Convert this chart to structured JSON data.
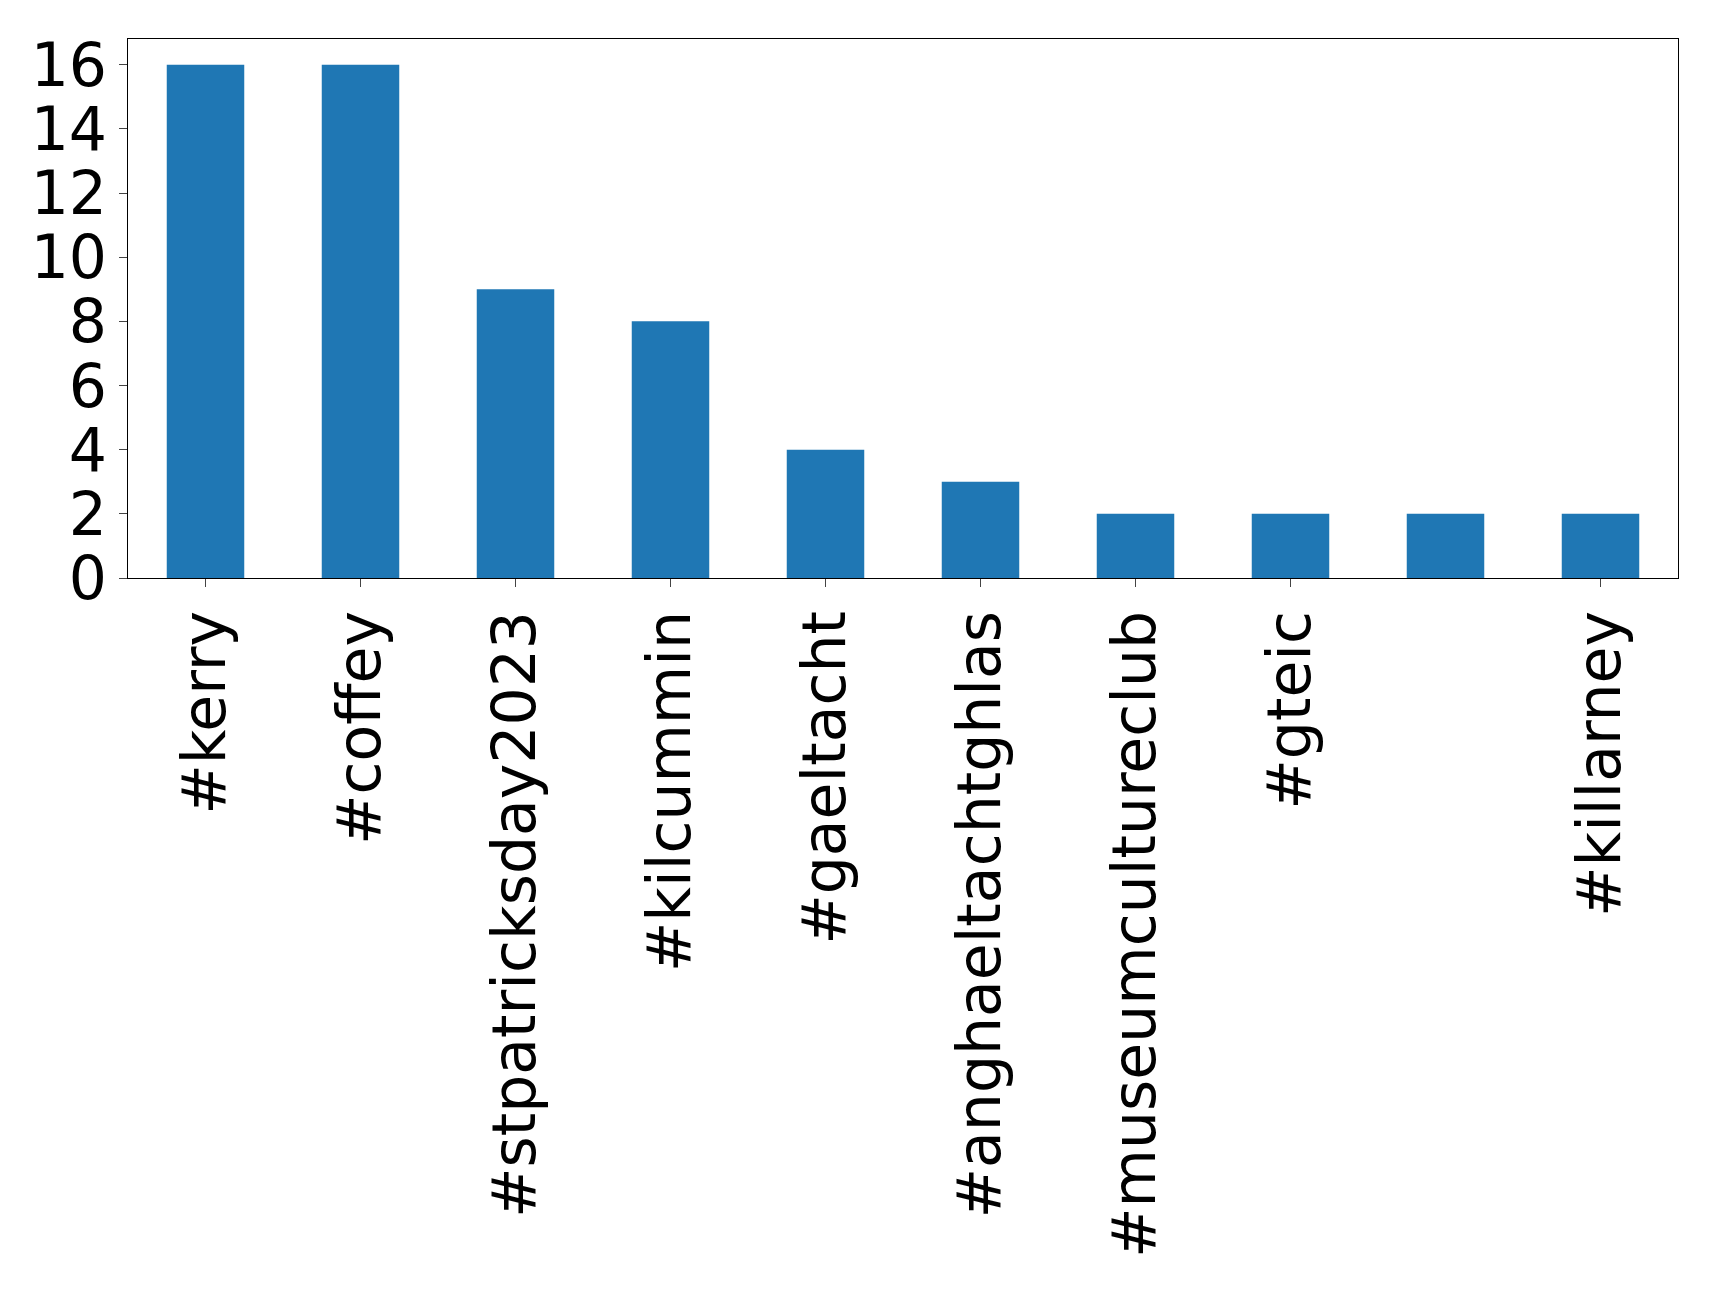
{
  "chart_data": {
    "type": "bar",
    "categories": [
      "#kerry",
      "#coffey",
      "#stpatricksday2023",
      "#kilcummin",
      "#gaeltacht",
      "#anghaeltachtghlas",
      "#museumcultureclub",
      "#gteic",
      null,
      "#killarney"
    ],
    "values": [
      16,
      16,
      9,
      8,
      4,
      3,
      2,
      2,
      2,
      2
    ],
    "color": "#1f77b4",
    "ylim": [
      0,
      16.8
    ],
    "yticks": [
      0,
      2,
      4,
      6,
      8,
      10,
      12,
      14,
      16
    ],
    "grid": false
  }
}
